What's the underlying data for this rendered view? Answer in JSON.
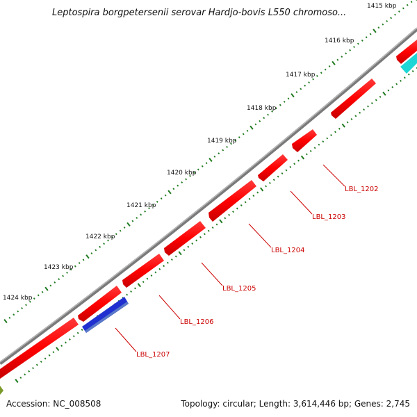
{
  "map": {
    "title": "Leptospira borgpetersenii serovar Hardjo-bovis L550 chromoso...",
    "accession": "Accession: NC_008508",
    "summary": "Topology: circular; Length: 3,614,446 bp; Genes: 2,745"
  },
  "ticks": [
    "1415 kbp",
    "1416 kbp",
    "1417 kbp",
    "1418 kbp",
    "1419 kbp",
    "1420 kbp",
    "1421 kbp",
    "1422 kbp",
    "1423 kbp",
    "1424 kbp"
  ],
  "genes": [
    {
      "label": "LBL_1202",
      "color": "#ff0000"
    },
    {
      "label": "LBL_1203",
      "color": "#ff0000"
    },
    {
      "label": "LBL_1204",
      "color": "#ff0000"
    },
    {
      "label": "LBL_1205",
      "color": "#ff0000"
    },
    {
      "label": "LBL_1206",
      "color": "#ff0000"
    },
    {
      "label": "LBL_1207",
      "color": "#1a1acc"
    }
  ],
  "colors": {
    "backbone": "#8c8c8c",
    "forward_gene": "#ff0000",
    "reverse_gene": "#1a1acc",
    "teal_feature": "#1fd6d6",
    "olive_feature": "#7a9a2a",
    "tick_marks": "#1f7a1f",
    "label_text": "#cc0000"
  }
}
